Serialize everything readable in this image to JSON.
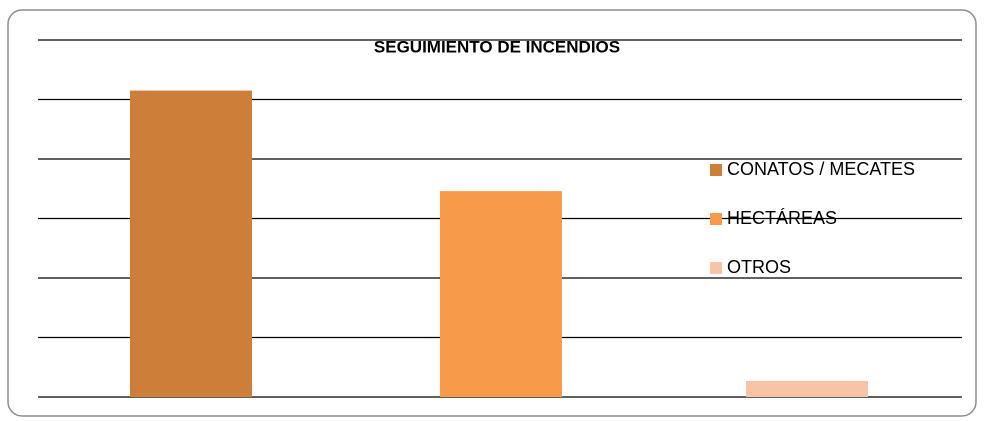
{
  "chart_data": {
    "type": "bar",
    "title": "SEGUIMIENTO DE INCENDIOS",
    "categories": [
      null
    ],
    "series": [
      {
        "name": "CONATOS / MECATES",
        "color": "#cd7f3a",
        "values": [
          5.15
        ]
      },
      {
        "name": "HECTÁREAS",
        "color": "#f79a4a",
        "values": [
          3.46
        ]
      },
      {
        "name": "OTROS",
        "color": "#f9c4a5",
        "values": [
          0.27
        ]
      }
    ],
    "ylim": [
      0,
      6
    ],
    "yticks": [
      0,
      1,
      2,
      3,
      4,
      5,
      6
    ],
    "grid": true,
    "legend": "right"
  }
}
